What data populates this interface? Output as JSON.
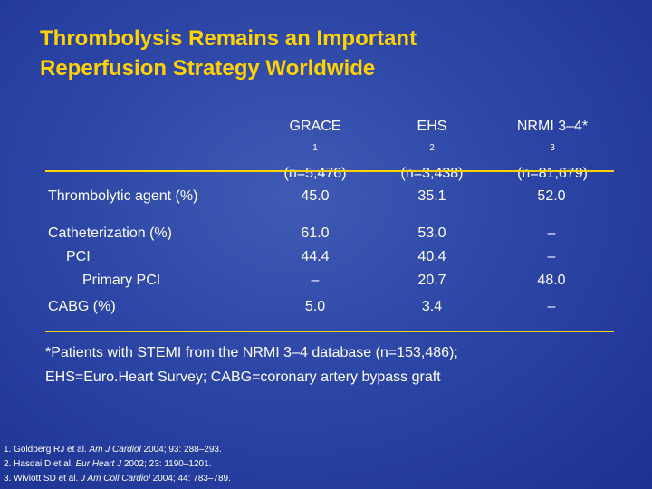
{
  "title": {
    "line1": "Thrombolysis Remains an Important",
    "line2": "Reperfusion Strategy Worldwide"
  },
  "columns": [
    {
      "name": "GRACE",
      "sup": "1",
      "n": "(n=5,476)"
    },
    {
      "name": "EHS",
      "sup": "2",
      "n": "(n=3,438)"
    },
    {
      "name": "NRMI 3–4*",
      "sup": "3",
      "n": "(n=81,679)"
    }
  ],
  "rows": [
    {
      "label": "Thrombolytic agent (%)",
      "values": [
        "45.0",
        "35.1",
        "52.0"
      ]
    },
    {
      "label": "Catheterization (%)",
      "values": [
        "61.0",
        "53.0",
        "–"
      ]
    },
    {
      "label": "PCI",
      "values": [
        "44.4",
        "40.4",
        "–"
      ]
    },
    {
      "label": "Primary PCI",
      "values": [
        "–",
        "20.7",
        "48.0"
      ]
    },
    {
      "label": "CABG (%)",
      "values": [
        "5.0",
        "3.4",
        "–"
      ]
    }
  ],
  "footnote": {
    "line1": "*Patients with STEMI from the NRMI 3–4 database (n=153,486);",
    "line2": "EHS=Euro.Heart Survey; CABG=coronary artery bypass graft"
  },
  "references": [
    {
      "prefix": "1. Goldberg RJ et al. ",
      "journal": "Am J Cardiol",
      "suffix": " 2004; 93: 288–293."
    },
    {
      "prefix": "2. Hasdai D et al. ",
      "journal": "Eur Heart J",
      "suffix": " 2002; 23: 1190–1201."
    },
    {
      "prefix": "3. Wiviott SD et al. ",
      "journal": "J Am Coll Cardiol",
      "suffix": " 2004; 44: 783–789."
    }
  ],
  "colors": {
    "title": "#ffd200",
    "rule": "#ffd200",
    "background": "#2d46a6",
    "text": "#ffffff"
  }
}
